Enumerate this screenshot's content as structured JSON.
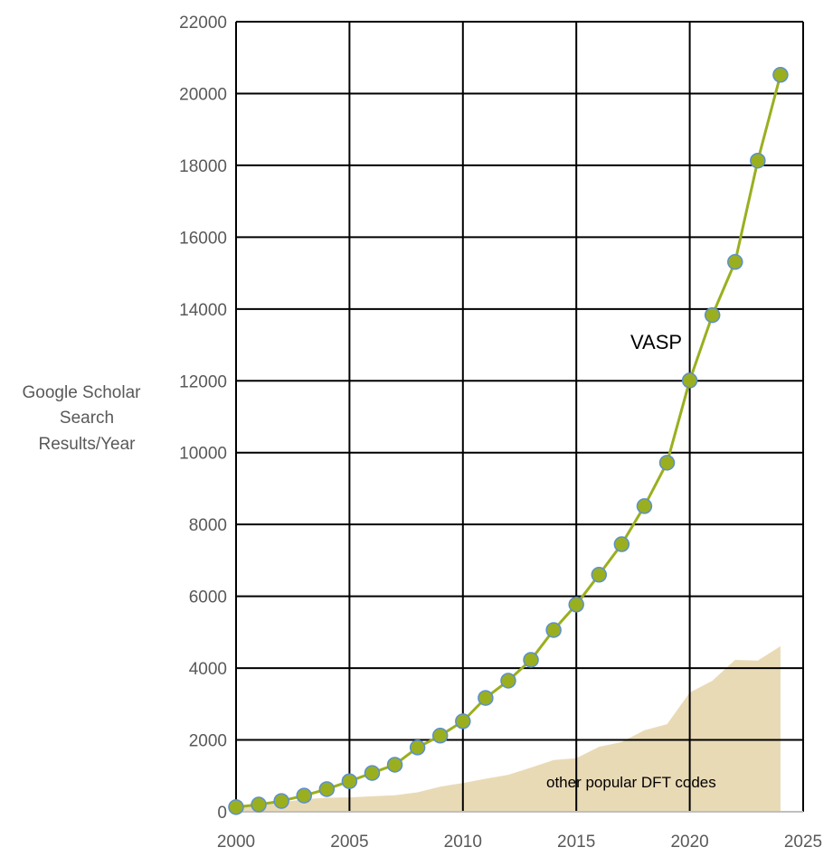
{
  "chart_data": {
    "type": "line",
    "title": "",
    "xlabel": "",
    "ylabel": "Google Scholar Search Results/Year",
    "ylabel_lines": [
      "Google Scholar",
      "Search",
      "Results/Year"
    ],
    "xlim": [
      2000,
      2025
    ],
    "ylim": [
      0,
      22000
    ],
    "xticks": [
      2000,
      2005,
      2010,
      2015,
      2020,
      2025
    ],
    "yticks": [
      0,
      2000,
      4000,
      6000,
      8000,
      10000,
      12000,
      14000,
      16000,
      18000,
      20000,
      22000
    ],
    "grid": true,
    "x": [
      2000,
      2001,
      2002,
      2003,
      2004,
      2005,
      2006,
      2007,
      2008,
      2009,
      2010,
      2011,
      2012,
      2013,
      2014,
      2015,
      2016,
      2017,
      2018,
      2019,
      2020,
      2021,
      2022,
      2023,
      2024
    ],
    "series": [
      {
        "name": "VASP",
        "kind": "line-markers",
        "color": "#9aaf1f",
        "marker_edge": "#5b8fcf",
        "values": [
          130,
          200,
          300,
          450,
          630,
          850,
          1080,
          1310,
          1790,
          2120,
          2520,
          3170,
          3650,
          4230,
          5060,
          5770,
          6600,
          7450,
          8510,
          9720,
          12010,
          13830,
          15310,
          18130,
          20520
        ]
      },
      {
        "name": "other popular DFT codes",
        "kind": "area",
        "color": "#e9dab6",
        "values": [
          100,
          180,
          260,
          350,
          390,
          400,
          430,
          460,
          540,
          700,
          800,
          920,
          1030,
          1230,
          1440,
          1490,
          1810,
          1940,
          2270,
          2440,
          3320,
          3650,
          4230,
          4210,
          4610
        ]
      }
    ],
    "annotations": [
      "VASP",
      "other popular DFT codes"
    ]
  }
}
